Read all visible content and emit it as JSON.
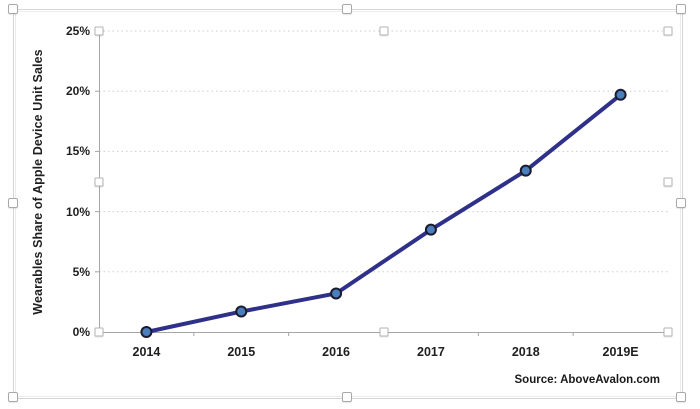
{
  "chart_data": {
    "type": "line",
    "title": "",
    "categories": [
      "2014",
      "2015",
      "2016",
      "2017",
      "2018",
      "2019E"
    ],
    "values": [
      0.0,
      1.7,
      3.2,
      8.5,
      13.4,
      19.7
    ],
    "xlabel": "",
    "ylabel": "Wearables Share of Apple Device Unit Sales",
    "ylim": [
      0,
      25
    ],
    "ytick_labels": [
      "0%",
      "5%",
      "10%",
      "15%",
      "20%",
      "25%"
    ],
    "grid": "horizontal dotted gridlines",
    "legend": "none",
    "source": "Source: AboveAvalon.com",
    "colors": {
      "line": "#2e3089",
      "marker_fill": "#4a7ebc",
      "marker_stroke": "#1b1b2f",
      "axis": "#a6a6a6",
      "gridline": "#cdcdcd",
      "text": "#1f1f1f",
      "selection_handle_fill": "#ffffff",
      "selection_handle_border": "#a9a9a9"
    }
  }
}
